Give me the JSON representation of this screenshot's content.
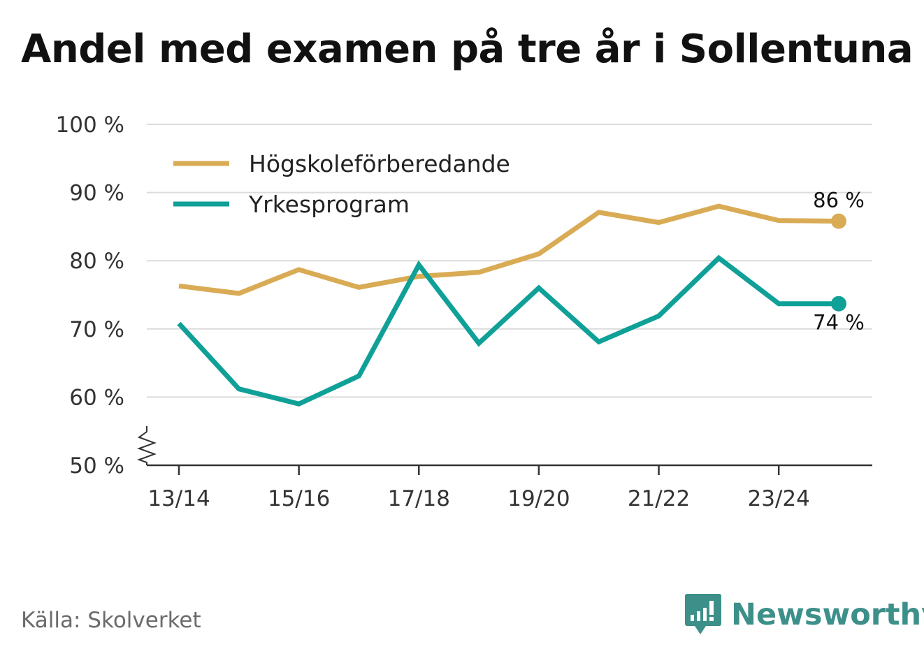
{
  "title": "Andel med examen på tre år i Sollentuna",
  "source": "Källa: Skolverket",
  "brand": "Newsworthy",
  "colors": {
    "series1": "#d9ab55",
    "series2": "#0fa098",
    "brand": "#3d8f8a"
  },
  "chart_data": {
    "type": "line",
    "x": [
      "13/14",
      "14/15",
      "15/16",
      "16/17",
      "17/18",
      "18/19",
      "19/20",
      "20/21",
      "21/22",
      "22/23",
      "23/24",
      "24/25"
    ],
    "x_tick_labels": [
      "13/14",
      "15/16",
      "17/18",
      "19/20",
      "21/22",
      "23/24"
    ],
    "y_tick_labels": [
      "50 %",
      "60 %",
      "70 %",
      "80 %",
      "90 %",
      "100 %"
    ],
    "ylim": [
      50,
      100
    ],
    "y_axis_break": true,
    "grid": true,
    "legend_position": "top-left",
    "series": [
      {
        "name": "Högskoleförberedande",
        "color": "#d9ab55",
        "values": [
          76.3,
          75.2,
          78.7,
          76.1,
          77.7,
          78.3,
          81.0,
          87.1,
          85.6,
          88.0,
          85.9,
          85.8
        ],
        "end_label": "86 %"
      },
      {
        "name": "Yrkesprogram",
        "color": "#0fa098",
        "values": [
          70.8,
          61.2,
          59.0,
          63.1,
          79.4,
          67.9,
          76.0,
          68.1,
          71.9,
          80.4,
          73.7,
          73.7
        ],
        "end_label": "74 %"
      }
    ]
  }
}
